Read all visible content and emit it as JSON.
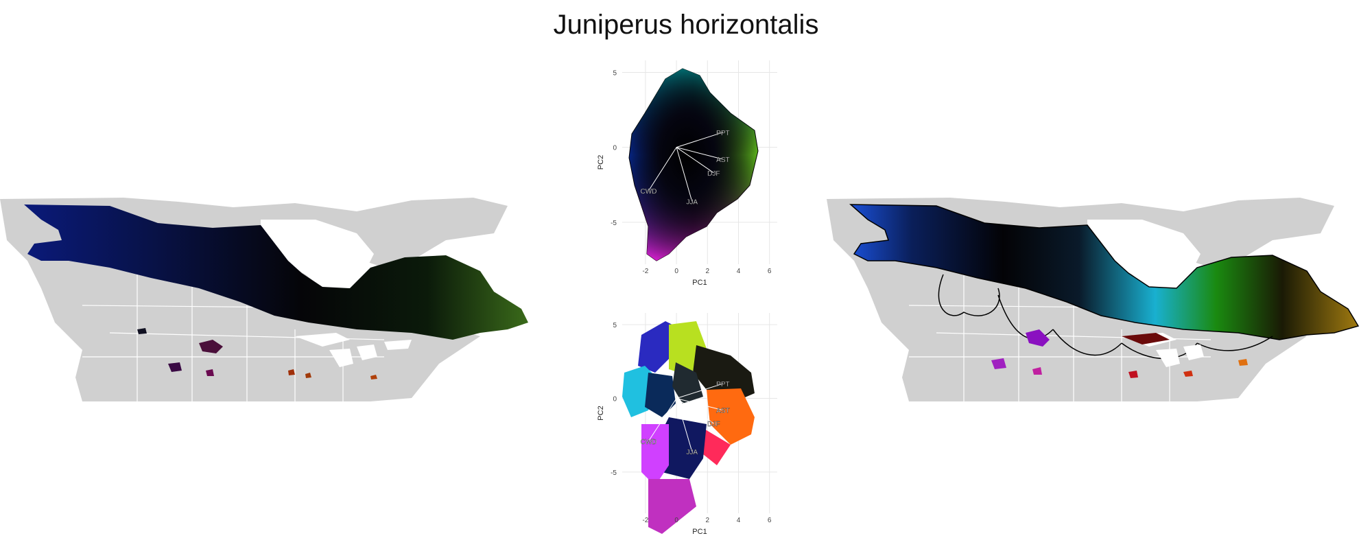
{
  "title": "Juniperus horizontalis",
  "chart_data": [
    {
      "type": "scatter",
      "panel": "top",
      "xlabel": "PC1",
      "ylabel": "PC2",
      "xlim": [
        -3.5,
        6.5
      ],
      "ylim": [
        -7.8,
        5.8
      ],
      "x_ticks": [
        -2,
        0,
        2,
        4,
        6
      ],
      "y_ticks": [
        -5,
        0,
        5
      ],
      "grid": true,
      "vectors": [
        {
          "label": "PPT",
          "x": 3.0,
          "y": 1.0
        },
        {
          "label": "AST",
          "x": 3.0,
          "y": -0.8
        },
        {
          "label": "DJF",
          "x": 2.4,
          "y": -1.7
        },
        {
          "label": "CWD",
          "x": -1.8,
          "y": -2.9
        },
        {
          "label": "JJA",
          "x": 1.0,
          "y": -3.6
        }
      ]
    },
    {
      "type": "scatter",
      "panel": "bottom",
      "xlabel": "PC1",
      "ylabel": "PC2",
      "xlim": [
        -3.5,
        6.5
      ],
      "ylim": [
        -7.8,
        5.8
      ],
      "x_ticks": [
        -2,
        0,
        2,
        4,
        6
      ],
      "y_ticks": [
        -5,
        0,
        5
      ],
      "grid": true,
      "vectors": [
        {
          "label": "PPT",
          "x": 3.0,
          "y": 1.0
        },
        {
          "label": "AST",
          "x": 3.0,
          "y": -0.8
        },
        {
          "label": "DJF",
          "x": 2.4,
          "y": -1.7
        },
        {
          "label": "CWD",
          "x": -1.8,
          "y": -2.9
        },
        {
          "label": "JJA",
          "x": 1.0,
          "y": -3.6
        }
      ]
    }
  ]
}
